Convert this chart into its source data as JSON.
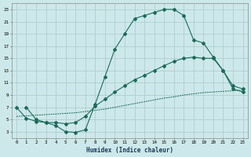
{
  "bg_color": "#cde8ea",
  "grid_color": "#aecdd2",
  "line_color": "#1a6b5a",
  "xlabel": "Humidex (Indice chaleur)",
  "xlim": [
    -0.5,
    23.5
  ],
  "ylim": [
    2,
    24
  ],
  "yticks": [
    3,
    5,
    7,
    9,
    11,
    13,
    15,
    17,
    19,
    21,
    23
  ],
  "xticks": [
    0,
    1,
    2,
    3,
    4,
    5,
    6,
    7,
    8,
    9,
    10,
    11,
    12,
    13,
    14,
    15,
    16,
    17,
    18,
    19,
    20,
    21,
    22,
    23
  ],
  "curve1_x": [
    1,
    2,
    3,
    4,
    5,
    6,
    7,
    8,
    9,
    10,
    11,
    12,
    13,
    14,
    15,
    16,
    17,
    18,
    19,
    20,
    21,
    22,
    23
  ],
  "curve1_y": [
    7,
    5,
    4.5,
    4,
    3,
    2.9,
    3.3,
    7.5,
    12,
    16.5,
    19,
    21.5,
    22,
    22.5,
    23,
    23,
    22,
    18,
    17.5,
    15.2,
    13,
    10,
    9.5
  ],
  "curve2_x": [
    0,
    1,
    2,
    3,
    4,
    5,
    6,
    7,
    8,
    9,
    10,
    11,
    12,
    13,
    14,
    15,
    16,
    17,
    18,
    19,
    20,
    21,
    22,
    23
  ],
  "curve2_y": [
    7,
    5.2,
    4.7,
    4.5,
    4.5,
    4.3,
    4.5,
    5.5,
    7.2,
    8.3,
    9.5,
    10.5,
    11.5,
    12.2,
    13.0,
    13.8,
    14.5,
    15.0,
    15.2,
    15.0,
    15.0,
    13.0,
    10.5,
    10.0
  ],
  "curve3_x": [
    0,
    1,
    2,
    3,
    4,
    5,
    6,
    7,
    8,
    9,
    10,
    11,
    12,
    13,
    14,
    15,
    16,
    17,
    18,
    19,
    20,
    21,
    22,
    23
  ],
  "curve3_y": [
    5.5,
    5.6,
    5.7,
    5.8,
    5.9,
    6.0,
    6.1,
    6.3,
    6.5,
    6.7,
    7.0,
    7.3,
    7.6,
    7.9,
    8.2,
    8.5,
    8.7,
    9.0,
    9.2,
    9.4,
    9.5,
    9.6,
    9.7,
    9.8
  ]
}
